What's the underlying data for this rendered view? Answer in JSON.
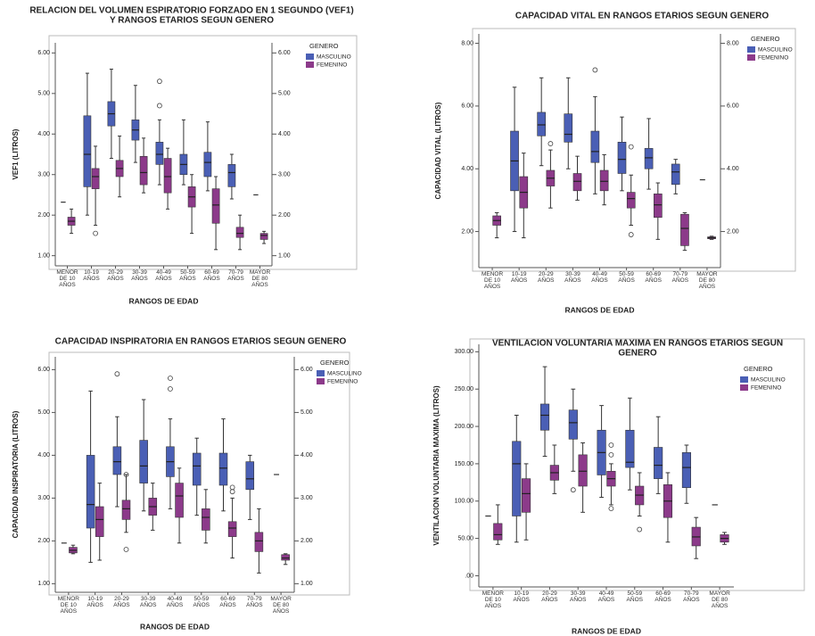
{
  "chart_data": [
    {
      "type": "box",
      "title": [
        "RELACION DEL VOLUMEN ESPIRATORIO FORZADO EN 1 SEGUNDO (VEF1)",
        "Y RANGOS ETARIOS SEGUN GENERO"
      ],
      "y_label": "VEF1 (LITROS)",
      "x_label": "RANGOS DE EDAD",
      "legend_title": "GENERO",
      "right_axis": true,
      "categories": [
        "MENOR DE 10 AÑOS",
        "10-19 AÑOS",
        "20-29 AÑOS",
        "30-39 AÑOS",
        "40-49 AÑOS",
        "50-59 AÑOS",
        "60-69 AÑOS",
        "70-79 AÑOS",
        "MAYOR DE 80 AÑOS"
      ],
      "ylim": [
        0.75,
        6.25
      ],
      "yticks": [
        {
          "value": 1,
          "label": "1.00"
        },
        {
          "value": 2,
          "label": "2.00"
        },
        {
          "value": 3,
          "label": "3.00"
        },
        {
          "value": 4,
          "label": "4.00"
        },
        {
          "value": 5,
          "label": "5.00"
        },
        {
          "value": 6,
          "label": "6.00"
        }
      ],
      "series": [
        {
          "name": "MASCULINO",
          "color": "#4a5fb5",
          "boxes": [
            {
              "median": 2.32
            },
            {
              "min": 2.0,
              "q1": 2.7,
              "median": 3.5,
              "q3": 4.45,
              "max": 5.5
            },
            {
              "min": 3.4,
              "q1": 4.2,
              "median": 4.5,
              "q3": 4.8,
              "max": 5.6
            },
            {
              "min": 3.3,
              "q1": 3.85,
              "median": 4.1,
              "q3": 4.35,
              "max": 5.2
            },
            {
              "min": 2.75,
              "q1": 3.25,
              "median": 3.5,
              "q3": 3.8,
              "max": 4.35,
              "outliers": [
                4.7,
                5.3
              ]
            },
            {
              "min": 2.75,
              "q1": 3.0,
              "median": 3.25,
              "q3": 3.5,
              "max": 4.35
            },
            {
              "min": 2.6,
              "q1": 2.95,
              "median": 3.3,
              "q3": 3.55,
              "max": 4.3
            },
            {
              "min": 2.4,
              "q1": 2.7,
              "median": 3.05,
              "q3": 3.25,
              "max": 3.5
            },
            {
              "median": 2.5
            }
          ]
        },
        {
          "name": "FEMENINO",
          "color": "#8c3a8a",
          "boxes": [
            {
              "min": 1.55,
              "q1": 1.75,
              "median": 1.85,
              "q3": 1.95,
              "max": 2.15
            },
            {
              "min": 1.75,
              "q1": 2.65,
              "median": 2.95,
              "q3": 3.15,
              "max": 3.7,
              "outliers": [
                1.55
              ]
            },
            {
              "min": 2.45,
              "q1": 2.95,
              "median": 3.15,
              "q3": 3.35,
              "max": 3.95
            },
            {
              "min": 2.55,
              "q1": 2.75,
              "median": 3.05,
              "q3": 3.45,
              "max": 3.9
            },
            {
              "min": 2.15,
              "q1": 2.55,
              "median": 2.95,
              "q3": 3.4,
              "max": 3.65
            },
            {
              "min": 1.55,
              "q1": 2.2,
              "median": 2.45,
              "q3": 2.7,
              "max": 3.0
            },
            {
              "min": 1.15,
              "q1": 1.8,
              "median": 2.25,
              "q3": 2.65,
              "max": 2.95
            },
            {
              "min": 1.15,
              "q1": 1.45,
              "median": 1.55,
              "q3": 1.7,
              "max": 2.0
            },
            {
              "min": 1.3,
              "q1": 1.4,
              "median": 1.5,
              "q3": 1.55,
              "max": 1.6
            }
          ]
        }
      ]
    },
    {
      "type": "box",
      "title": [
        "CAPACIDAD VITAL EN RANGOS ETARIOS SEGUN GENERO"
      ],
      "y_label": "CAPACIDAD VITAL (LITROS)",
      "x_label": "RANGOS DE EDAD",
      "legend_title": "GENERO",
      "right_axis": true,
      "categories": [
        "MENOR DE 10 AÑOS",
        "10-19 AÑOS",
        "20-29 AÑOS",
        "30-39 AÑOS",
        "40-49 AÑOS",
        "50-59 AÑOS",
        "60-69 AÑOS",
        "70-79 AÑOS",
        "MAYOR DE 80 AÑOS"
      ],
      "ylim": [
        0.85,
        8.3
      ],
      "yticks": [
        {
          "value": 2,
          "label": "2.00"
        },
        {
          "value": 4,
          "label": "4.00"
        },
        {
          "value": 6,
          "label": "6.00"
        },
        {
          "value": 8,
          "label": "8.00"
        }
      ],
      "series": [
        {
          "name": "MASCULINO",
          "color": "#4a5fb5",
          "boxes": [
            null,
            {
              "min": 2.0,
              "q1": 3.3,
              "median": 4.25,
              "q3": 5.2,
              "max": 6.6
            },
            {
              "min": 4.1,
              "q1": 5.05,
              "median": 5.4,
              "q3": 5.8,
              "max": 6.9
            },
            {
              "min": 4.0,
              "q1": 4.85,
              "median": 5.1,
              "q3": 5.75,
              "max": 6.9
            },
            {
              "min": 3.2,
              "q1": 4.2,
              "median": 4.55,
              "q3": 5.2,
              "max": 6.3,
              "outliers": [
                7.15
              ]
            },
            {
              "min": 3.3,
              "q1": 3.85,
              "median": 4.3,
              "q3": 4.85,
              "max": 5.65
            },
            {
              "min": 3.35,
              "q1": 4.0,
              "median": 4.35,
              "q3": 4.65,
              "max": 5.6
            },
            {
              "min": 3.2,
              "q1": 3.5,
              "median": 3.9,
              "q3": 4.15,
              "max": 4.3
            },
            {
              "median": 3.65
            }
          ]
        },
        {
          "name": "FEMENINO",
          "color": "#8c3a8a",
          "boxes": [
            {
              "min": 1.8,
              "q1": 2.2,
              "median": 2.35,
              "q3": 2.5,
              "max": 2.6
            },
            {
              "min": 1.8,
              "q1": 2.75,
              "median": 3.25,
              "q3": 3.75,
              "max": 4.5
            },
            {
              "min": 2.75,
              "q1": 3.45,
              "median": 3.7,
              "q3": 3.95,
              "max": 4.6,
              "outliers": [
                4.8
              ]
            },
            {
              "min": 3.0,
              "q1": 3.3,
              "median": 3.6,
              "q3": 3.85,
              "max": 4.4
            },
            {
              "min": 2.85,
              "q1": 3.3,
              "median": 3.6,
              "q3": 3.95,
              "max": 4.45
            },
            {
              "min": 2.2,
              "q1": 2.75,
              "median": 3.05,
              "q3": 3.25,
              "max": 3.8,
              "outliers": [
                1.9,
                4.7
              ]
            },
            {
              "min": 1.75,
              "q1": 2.45,
              "median": 2.85,
              "q3": 3.2,
              "max": 3.55
            },
            {
              "min": 1.4,
              "q1": 1.55,
              "median": 2.1,
              "q3": 2.55,
              "max": 2.6
            },
            {
              "min": 1.75,
              "q1": 1.77,
              "median": 1.8,
              "q3": 1.83,
              "max": 1.85
            }
          ]
        }
      ]
    },
    {
      "type": "box",
      "title": [
        "CAPACIDAD INSPIRATORIA EN RANGOS ETARIOS SEGUN GENERO"
      ],
      "y_label": "CAPACIDAD INSPIRATORIA (LITROS)",
      "x_label": "RANGOS DE EDAD",
      "legend_title": "GENERO",
      "right_axis": true,
      "categories": [
        "MENOR DE 10 AÑOS",
        "10-19 AÑOS",
        "20-29 AÑOS",
        "30-39 AÑOS",
        "40-49 AÑOS",
        "50-59 AÑOS",
        "60-69 AÑOS",
        "70-79 AÑOS",
        "MAYOR DE 80 AÑOS"
      ],
      "ylim": [
        0.8,
        6.3
      ],
      "yticks": [
        {
          "value": 1,
          "label": "1.00"
        },
        {
          "value": 2,
          "label": "2.00"
        },
        {
          "value": 3,
          "label": "3.00"
        },
        {
          "value": 4,
          "label": "4.00"
        },
        {
          "value": 5,
          "label": "5.00"
        },
        {
          "value": 6,
          "label": "6.00"
        }
      ],
      "series": [
        {
          "name": "MASCULINO",
          "color": "#4a5fb5",
          "boxes": [
            {
              "median": 1.95
            },
            {
              "min": 1.5,
              "q1": 2.3,
              "median": 2.85,
              "q3": 4.0,
              "max": 5.5
            },
            {
              "min": 2.8,
              "q1": 3.55,
              "median": 3.85,
              "q3": 4.2,
              "max": 4.9,
              "outliers": [
                5.9
              ]
            },
            {
              "min": 2.7,
              "q1": 3.35,
              "median": 3.75,
              "q3": 4.35,
              "max": 5.3
            },
            {
              "min": 2.75,
              "q1": 3.5,
              "median": 3.85,
              "q3": 4.2,
              "max": 4.85,
              "outliers": [
                5.55,
                5.8
              ]
            },
            {
              "min": 2.6,
              "q1": 3.3,
              "median": 3.75,
              "q3": 4.05,
              "max": 4.4
            },
            {
              "min": 2.7,
              "q1": 3.3,
              "median": 3.7,
              "q3": 4.05,
              "max": 4.85
            },
            {
              "min": 2.5,
              "q1": 3.2,
              "median": 3.45,
              "q3": 3.85,
              "max": 4.0
            },
            {
              "median": 3.55
            }
          ]
        },
        {
          "name": "FEMENINO",
          "color": "#8c3a8a",
          "boxes": [
            {
              "min": 1.7,
              "q1": 1.72,
              "median": 1.78,
              "q3": 1.85,
              "max": 1.9
            },
            {
              "min": 1.55,
              "q1": 2.1,
              "median": 2.5,
              "q3": 2.8,
              "max": 3.35
            },
            {
              "min": 2.2,
              "q1": 2.5,
              "median": 2.75,
              "q3": 2.95,
              "max": 3.55,
              "outliers": [
                1.8,
                3.55
              ]
            },
            {
              "min": 2.25,
              "q1": 2.6,
              "median": 2.8,
              "q3": 3.0,
              "max": 3.35
            },
            {
              "min": 1.95,
              "q1": 2.55,
              "median": 3.05,
              "q3": 3.35,
              "max": 3.7
            },
            {
              "min": 1.95,
              "q1": 2.25,
              "median": 2.55,
              "q3": 2.75,
              "max": 3.2
            },
            {
              "min": 1.6,
              "q1": 2.1,
              "median": 2.3,
              "q3": 2.45,
              "max": 3.0,
              "outliers": [
                3.15,
                3.25
              ]
            },
            {
              "min": 1.25,
              "q1": 1.75,
              "median": 2.0,
              "q3": 2.2,
              "max": 2.75
            },
            {
              "min": 1.45,
              "q1": 1.55,
              "median": 1.6,
              "q3": 1.68,
              "max": 1.7
            }
          ]
        }
      ]
    },
    {
      "type": "box",
      "title": [
        "VENTILACION VOLUNTARIA MAXIMA EN RANGOS ETARIOS SEGUN",
        "GENERO"
      ],
      "y_label": "VENTILACION VOLUNTARIA MAXIMA (LITROS)",
      "x_label": "RANGOS DE EDAD",
      "legend_title": "GENERO",
      "right_axis": false,
      "categories": [
        "MENOR DE 10 AÑOS",
        "10-19 AÑOS",
        "20-29 AÑOS",
        "30-39 AÑOS",
        "40-49 AÑOS",
        "50-59 AÑOS",
        "60-69 AÑOS",
        "70-79 AÑOS",
        "MAYOR DE 80 AÑOS"
      ],
      "ylim": [
        -15,
        310
      ],
      "yticks": [
        {
          "value": 0,
          "label": ".00"
        },
        {
          "value": 50,
          "label": "50.00"
        },
        {
          "value": 100,
          "label": "100.00"
        },
        {
          "value": 150,
          "label": "150.00"
        },
        {
          "value": 200,
          "label": "200.00"
        },
        {
          "value": 250,
          "label": "250.00"
        },
        {
          "value": 300,
          "label": "300.00"
        }
      ],
      "series": [
        {
          "name": "MASCULINO",
          "color": "#4a5fb5",
          "boxes": [
            {
              "median": 80
            },
            {
              "min": 45,
              "q1": 80,
              "median": 150,
              "q3": 180,
              "max": 215
            },
            {
              "min": 160,
              "q1": 195,
              "median": 215,
              "q3": 230,
              "max": 280
            },
            {
              "min": 140,
              "q1": 183,
              "median": 205,
              "q3": 222,
              "max": 250,
              "outliers": [
                115
              ]
            },
            {
              "min": 105,
              "q1": 135,
              "median": 165,
              "q3": 195,
              "max": 228
            },
            {
              "min": 115,
              "q1": 145,
              "median": 152,
              "q3": 195,
              "max": 238
            },
            {
              "min": 110,
              "q1": 130,
              "median": 148,
              "q3": 172,
              "max": 213
            },
            {
              "min": 97,
              "q1": 118,
              "median": 145,
              "q3": 165,
              "max": 175
            },
            {
              "median": 95
            }
          ]
        },
        {
          "name": "FEMENINO",
          "color": "#8c3a8a",
          "boxes": [
            {
              "min": 42,
              "q1": 48,
              "median": 55,
              "q3": 70,
              "max": 95
            },
            {
              "min": 48,
              "q1": 85,
              "median": 110,
              "q3": 130,
              "max": 150
            },
            {
              "min": 110,
              "q1": 128,
              "median": 138,
              "q3": 148,
              "max": 175
            },
            {
              "min": 85,
              "q1": 120,
              "median": 140,
              "q3": 162,
              "max": 178
            },
            {
              "min": 95,
              "q1": 120,
              "median": 130,
              "q3": 140,
              "max": 150,
              "outliers": [
                90,
                162,
                175
              ]
            },
            {
              "min": 80,
              "q1": 95,
              "median": 108,
              "q3": 120,
              "max": 138,
              "outliers": [
                62
              ]
            },
            {
              "min": 45,
              "q1": 78,
              "median": 100,
              "q3": 122,
              "max": 138
            },
            {
              "min": 23,
              "q1": 40,
              "median": 52,
              "q3": 65,
              "max": 78
            },
            {
              "min": 42,
              "q1": 45,
              "median": 50,
              "q3": 55,
              "max": 58
            }
          ]
        }
      ]
    }
  ]
}
